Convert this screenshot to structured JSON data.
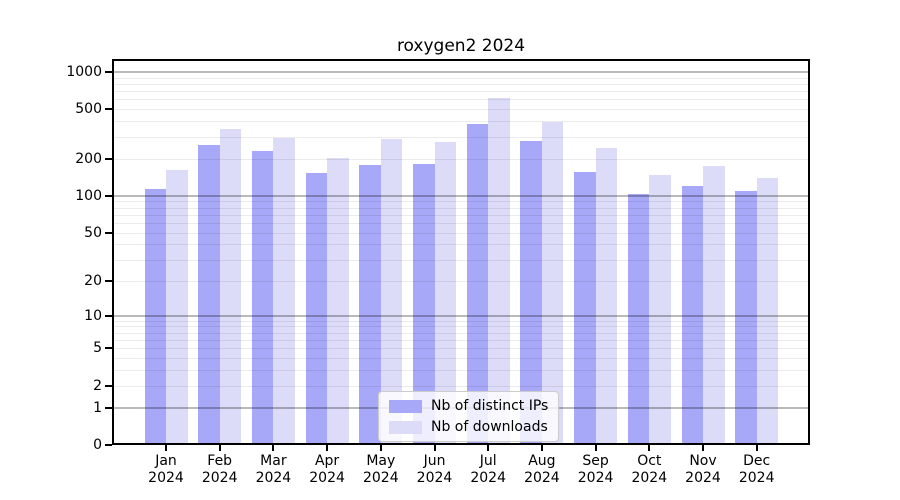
{
  "chart_data": {
    "type": "bar",
    "title": "roxygen2 2024",
    "categories": [
      "Jan",
      "Feb",
      "Mar",
      "Apr",
      "May",
      "Jun",
      "Jul",
      "Aug",
      "Sep",
      "Oct",
      "Nov",
      "Dec"
    ],
    "x_year_label": "2024",
    "series": [
      {
        "name": "Nb of distinct IPs",
        "key": "distinct-ips",
        "color": "#a8a8f8",
        "values": [
          114,
          257,
          229,
          153,
          178,
          182,
          381,
          280,
          156,
          103,
          119,
          110
        ]
      },
      {
        "name": "Nb of downloads",
        "key": "downloads",
        "color": "#dcdcf8",
        "values": [
          163,
          344,
          294,
          201,
          287,
          270,
          612,
          395,
          244,
          147,
          175,
          139
        ]
      }
    ],
    "y_scale": "log1p",
    "y_ticks": [
      1000,
      500,
      200,
      100,
      50,
      20,
      10,
      5,
      2,
      1,
      0
    ],
    "y_major_gridlines": [
      1,
      10,
      100,
      1000
    ],
    "ylim": [
      0,
      1100
    ],
    "grid": "on",
    "legend_position": "lower-center"
  },
  "colors": {
    "background": "#ffffff",
    "axis": "#000000",
    "major_grid": "rgba(0,0,0,0.27)",
    "minor_grid": "rgba(0,0,0,0.08)"
  }
}
